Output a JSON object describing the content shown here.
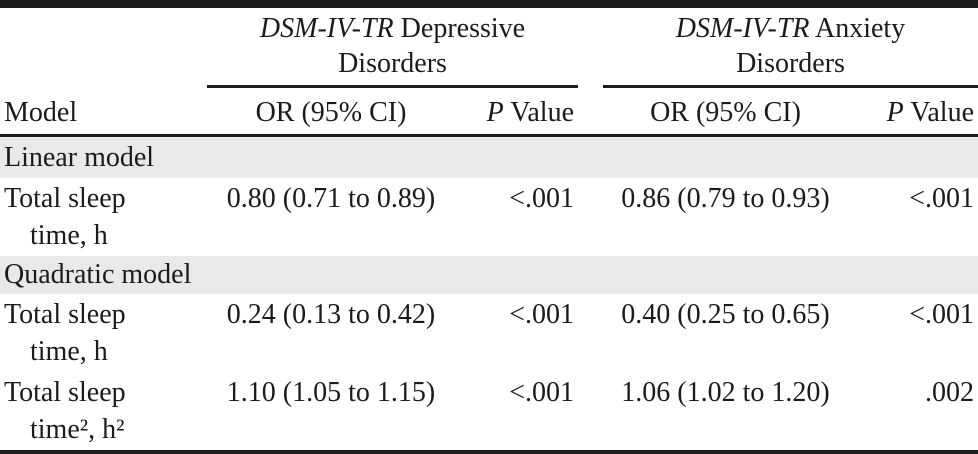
{
  "table": {
    "groups": [
      {
        "name_italic": "DSM-IV-TR",
        "name_rest": " Depressive",
        "line2": "Disorders"
      },
      {
        "name_italic": "DSM-IV-TR",
        "name_rest": " Anxiety",
        "line2": "Disorders"
      }
    ],
    "columns": {
      "model": "Model",
      "or_ci_dep": "OR (95% CI)",
      "p_dep_italic": "P",
      "p_dep_rest": " Value",
      "or_ci_anx": "OR (95% CI)",
      "p_anx_italic": "P",
      "p_anx_rest": " Value"
    },
    "sections": [
      {
        "header": "Linear model",
        "rows": [
          {
            "label1": "Total sleep",
            "label2": "time, h",
            "dep_or": "0.80 (0.71 to 0.89)",
            "dep_p": "<.001",
            "anx_or": "0.86 (0.79 to 0.93)",
            "anx_p": "<.001"
          }
        ]
      },
      {
        "header": "Quadratic model",
        "rows": [
          {
            "label1": "Total sleep",
            "label2": "time, h",
            "dep_or": "0.24 (0.13 to 0.42)",
            "dep_p": "<.001",
            "anx_or": "0.40 (0.25 to 0.65)",
            "anx_p": "<.001"
          },
          {
            "label1": "Total sleep",
            "label2": "time², h²",
            "dep_or": "1.10 (1.05 to 1.15)",
            "dep_p": "<.001",
            "anx_or": "1.06 (1.02 to 1.20)",
            "anx_p": ".002"
          }
        ]
      }
    ],
    "colors": {
      "band_background": "#e9e9e9",
      "rule": "#1c1c1c",
      "text": "#1b1b1b"
    }
  },
  "chart_data": {
    "type": "table",
    "column_groups": [
      "",
      "DSM-IV-TR Depressive Disorders",
      "DSM-IV-TR Anxiety Disorders"
    ],
    "columns": [
      "Model",
      "OR (95% CI)",
      "P Value",
      "OR (95% CI)",
      "P Value"
    ],
    "rows": [
      [
        "Linear model",
        "",
        "",
        "",
        ""
      ],
      [
        "Total sleep time, h",
        "0.80 (0.71 to 0.89)",
        "<.001",
        "0.86 (0.79 to 0.93)",
        "<.001"
      ],
      [
        "Quadratic model",
        "",
        "",
        "",
        ""
      ],
      [
        "Total sleep time, h",
        "0.24 (0.13 to 0.42)",
        "<.001",
        "0.40 (0.25 to 0.65)",
        "<.001"
      ],
      [
        "Total sleep time², h²",
        "1.10 (1.05 to 1.15)",
        "<.001",
        "1.06 (1.02 to 1.20)",
        ".002"
      ]
    ]
  }
}
